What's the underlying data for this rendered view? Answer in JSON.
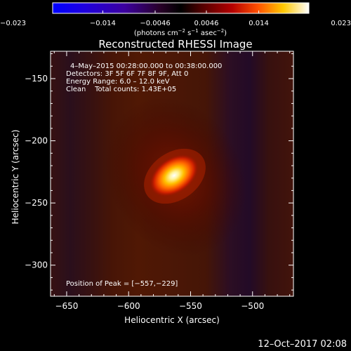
{
  "colorbar": {
    "tick_labels": [
      "−0.023",
      "−0.014",
      "−0.0046",
      "0.0046",
      "0.014",
      "0.023"
    ],
    "tick_values": [
      -0.023,
      -0.014,
      -0.0046,
      0.0046,
      0.014,
      0.023
    ],
    "range": [
      -0.023,
      0.023
    ],
    "unit_parts": [
      "(photons cm",
      "−2",
      " s",
      "−1",
      " asec",
      "−2",
      ")"
    ]
  },
  "image": {
    "title": "Reconstructed RHESSI Image",
    "info_lines": [
      "4–May–2015 00:28:00.000 to 00:38:00.000",
      "Detectors: 3F 5F 6F 7F 8F 9F, Att 0",
      "Energy Range: 6.0 – 12.0 keV",
      "Clean    Total counts: 1.43E+05"
    ],
    "peak_text": "Position of Peak = [−557,−229]",
    "peak": [
      -557,
      -229
    ],
    "xlim": [
      -663,
      -467
    ],
    "ylim": [
      -325,
      -128
    ],
    "x_ticks": [
      -650,
      -600,
      -550,
      -500
    ],
    "x_tick_labels": [
      "−650",
      "−600",
      "−550",
      "−500"
    ],
    "y_ticks": [
      -150,
      -200,
      -250,
      -300
    ],
    "y_tick_labels": [
      "−150",
      "−200",
      "−250",
      "−300"
    ],
    "xlabel": "Heliocentric X (arcsec)",
    "ylabel": "Heliocentric Y (arcsec)"
  },
  "footer": {
    "date_stamp": "12–Oct–2017 02:08"
  }
}
